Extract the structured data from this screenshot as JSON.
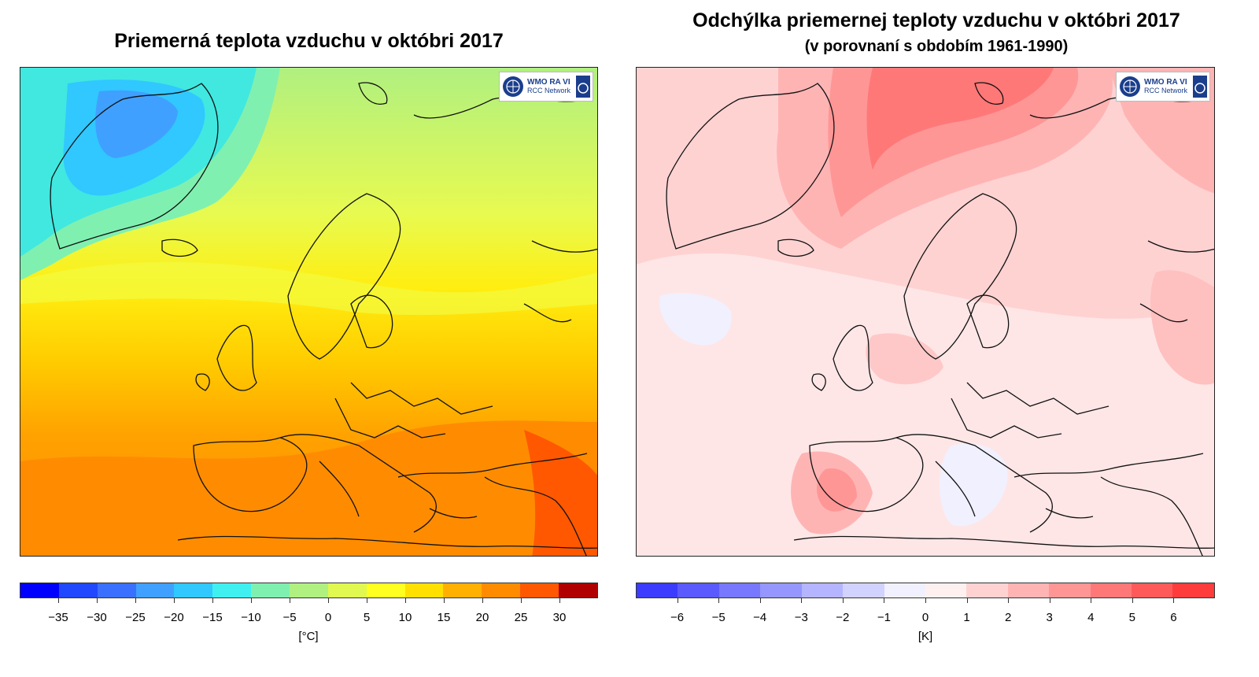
{
  "left_panel": {
    "title": "Priemerná teplota vzduchu v októbri 2017",
    "logo": {
      "line1": "WMO RA VI",
      "line2": "RCC Network",
      "icon_left": "wmo-emblem-icon",
      "icon_right": "dwd-logo-icon"
    },
    "colorbar": {
      "colors": [
        "#0000ff",
        "#2048ff",
        "#3a70ff",
        "#40a0ff",
        "#30c8ff",
        "#40f0f0",
        "#80f0b0",
        "#b0f080",
        "#e0f850",
        "#ffff20",
        "#ffe000",
        "#ffb000",
        "#ff8c00",
        "#ff5800",
        "#b00000"
      ],
      "tick_labels": [
        "−35",
        "−30",
        "−25",
        "−20",
        "−15",
        "−10",
        "−5",
        "0",
        "5",
        "10",
        "15",
        "20",
        "25",
        "30"
      ],
      "unit": "[°C]"
    }
  },
  "right_panel": {
    "title": "Odchýlka priemernej teploty vzduchu v októbri 2017",
    "subtitle": "(v porovnaní s obdobím 1961-1990)",
    "logo": {
      "line1": "WMO RA VI",
      "line2": "RCC Network",
      "icon_left": "wmo-emblem-icon",
      "icon_right": "dwd-logo-icon"
    },
    "colorbar": {
      "colors": [
        "#3c3cff",
        "#5a5aff",
        "#7878ff",
        "#9696ff",
        "#b4b4ff",
        "#d2d2ff",
        "#f0f0ff",
        "#fff0f0",
        "#ffd2d2",
        "#ffb4b4",
        "#ff9696",
        "#ff7878",
        "#ff5a5a",
        "#ff3c3c"
      ],
      "tick_labels": [
        "−6",
        "−5",
        "−4",
        "−3",
        "−2",
        "−1",
        "0",
        "1",
        "2",
        "3",
        "4",
        "5",
        "6"
      ],
      "unit": "[K]"
    }
  }
}
